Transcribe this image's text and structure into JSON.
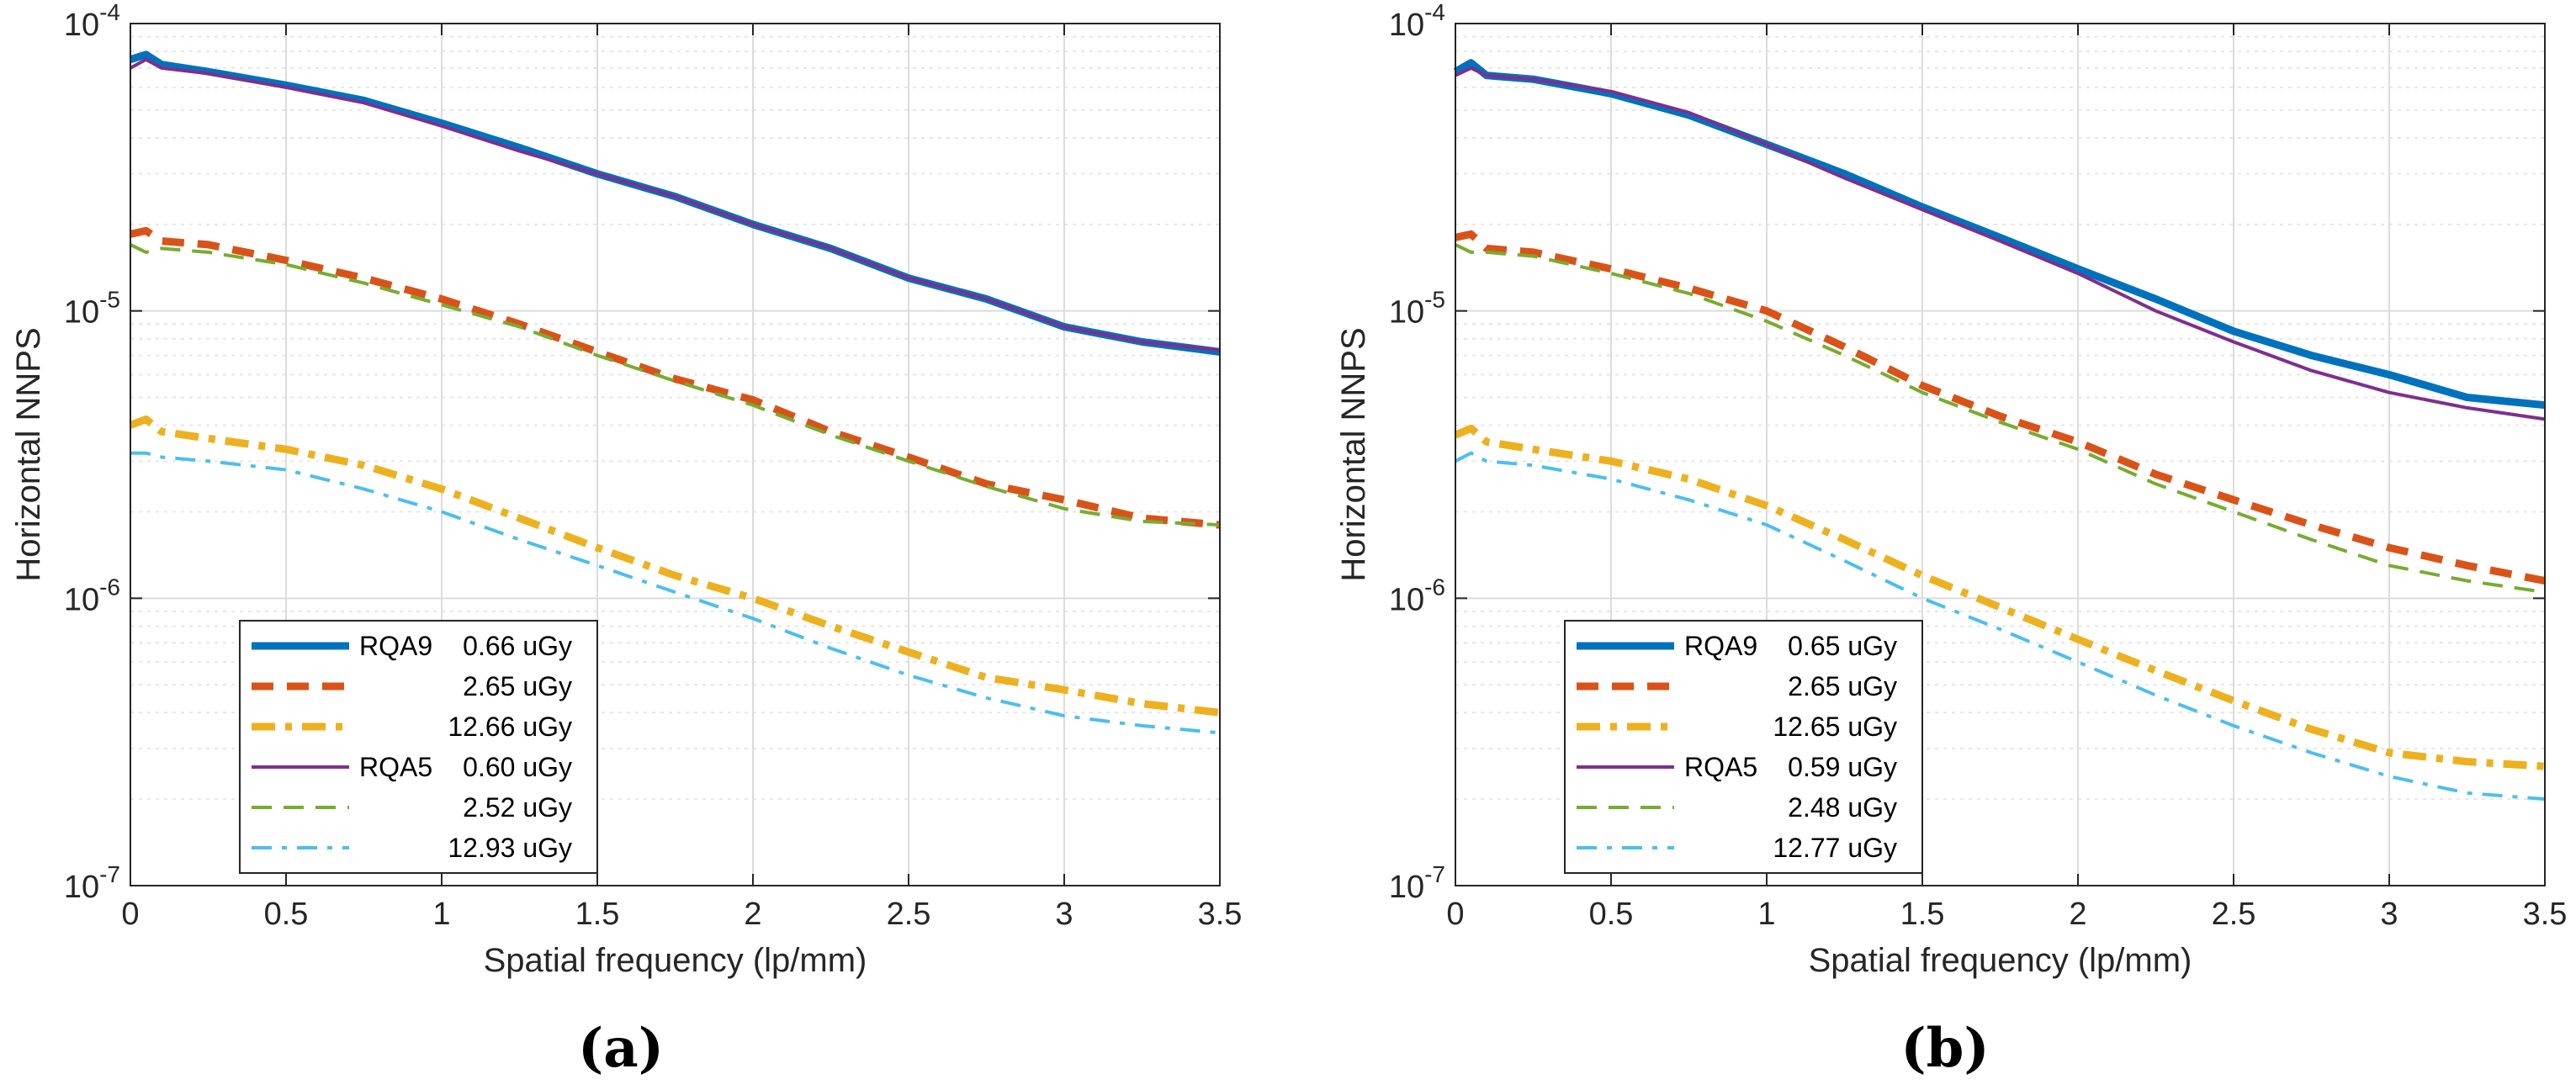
{
  "captions": [
    "(a)",
    "(b)"
  ],
  "colors": {
    "rqa9_low": "#0072BD",
    "rqa9_mid": "#D95319",
    "rqa9_high": "#EDB120",
    "rqa5_low": "#7E2F8E",
    "rqa5_mid": "#77AC30",
    "rqa5_high": "#4DBEEE"
  },
  "chart_data": [
    {
      "type": "line",
      "panel": "(a)",
      "title": "",
      "xlabel": "Spatial frequency (lp/mm)",
      "ylabel": "Horizontal NNPS",
      "xlim": [
        0,
        3.5
      ],
      "ylim": [
        1e-07,
        0.0001
      ],
      "yscale": "log",
      "grid": true,
      "legend_position": "bottom-left",
      "x_ticks": [
        "0",
        "0.5",
        "1",
        "1.5",
        "2",
        "2.5",
        "3",
        "3.5"
      ],
      "y_ticks": [
        {
          "base": "10",
          "exp": "-7",
          "value": 1e-07
        },
        {
          "base": "10",
          "exp": "-6",
          "value": 1e-06
        },
        {
          "base": "10",
          "exp": "-5",
          "value": 1e-05
        },
        {
          "base": "10",
          "exp": "-4",
          "value": 0.0001
        }
      ],
      "x": [
        0.0,
        0.05,
        0.1,
        0.25,
        0.5,
        0.75,
        1.0,
        1.25,
        1.5,
        1.75,
        2.0,
        2.25,
        2.5,
        2.75,
        3.0,
        3.25,
        3.5
      ],
      "series": [
        {
          "name": "RQA9 0.66 uGy",
          "legend_beam": "RQA9",
          "legend_dose": "0.66 uGy",
          "style": "solid-thick",
          "values": [
            7.5e-05,
            7.8e-05,
            7.2e-05,
            6.8e-05,
            6.1e-05,
            5.4e-05,
            4.5e-05,
            3.7e-05,
            3e-05,
            2.5e-05,
            2e-05,
            1.65e-05,
            1.3e-05,
            1.1e-05,
            8.8e-06,
            7.8e-06,
            7.2e-06
          ]
        },
        {
          "name": "2.65 uGy",
          "legend_beam": "",
          "legend_dose": "2.65 uGy",
          "style": "dashed-thick",
          "values": [
            1.85e-05,
            1.9e-05,
            1.75e-05,
            1.7e-05,
            1.5e-05,
            1.3e-05,
            1.1e-05,
            9e-06,
            7.2e-06,
            5.8e-06,
            4.9e-06,
            3.8e-06,
            3.1e-06,
            2.5e-06,
            2.2e-06,
            1.9e-06,
            1.8e-06
          ]
        },
        {
          "name": "12.66 uGy",
          "legend_beam": "",
          "legend_dose": "12.66 uGy",
          "style": "dashdot-thick",
          "values": [
            4e-06,
            4.2e-06,
            3.8e-06,
            3.6e-06,
            3.3e-06,
            2.9e-06,
            2.4e-06,
            1.9e-06,
            1.5e-06,
            1.2e-06,
            1e-06,
            8e-07,
            6.5e-07,
            5.3e-07,
            4.8e-07,
            4.3e-07,
            4e-07
          ]
        },
        {
          "name": "RQA5 0.60 uGy",
          "legend_beam": "RQA5",
          "legend_dose": "0.60 uGy",
          "style": "solid-thin",
          "values": [
            7e-05,
            7.5e-05,
            7e-05,
            6.7e-05,
            6e-05,
            5.3e-05,
            4.4e-05,
            3.6e-05,
            3e-05,
            2.5e-05,
            2e-05,
            1.65e-05,
            1.3e-05,
            1.1e-05,
            8.8e-06,
            7.8e-06,
            7.3e-06
          ]
        },
        {
          "name": "2.52 uGy",
          "legend_beam": "",
          "legend_dose": "2.52 uGy",
          "style": "dashed-thin",
          "values": [
            1.7e-05,
            1.6e-05,
            1.65e-05,
            1.6e-05,
            1.45e-05,
            1.25e-05,
            1.05e-05,
            8.8e-06,
            7e-06,
            5.7e-06,
            4.7e-06,
            3.7e-06,
            3e-06,
            2.45e-06,
            2.05e-06,
            1.85e-06,
            1.8e-06
          ]
        },
        {
          "name": "12.93 uGy",
          "legend_beam": "",
          "legend_dose": "12.93 uGy",
          "style": "dashdot-thin",
          "values": [
            3.2e-06,
            3.2e-06,
            3.1e-06,
            3e-06,
            2.8e-06,
            2.4e-06,
            2e-06,
            1.6e-06,
            1.3e-06,
            1.05e-06,
            8.5e-07,
            6.7e-07,
            5.4e-07,
            4.5e-07,
            3.9e-07,
            3.6e-07,
            3.4e-07
          ]
        }
      ]
    },
    {
      "type": "line",
      "panel": "(b)",
      "title": "",
      "xlabel": "Spatial frequency (lp/mm)",
      "ylabel": "Horizontal NNPS",
      "xlim": [
        0,
        3.5
      ],
      "ylim": [
        1e-07,
        0.0001
      ],
      "yscale": "log",
      "grid": true,
      "legend_position": "bottom-left",
      "x_ticks": [
        "0",
        "0.5",
        "1",
        "1.5",
        "2",
        "2.5",
        "3",
        "3.5"
      ],
      "y_ticks": [
        {
          "base": "10",
          "exp": "-7",
          "value": 1e-07
        },
        {
          "base": "10",
          "exp": "-6",
          "value": 1e-06
        },
        {
          "base": "10",
          "exp": "-5",
          "value": 1e-05
        },
        {
          "base": "10",
          "exp": "-4",
          "value": 0.0001
        }
      ],
      "x": [
        0.0,
        0.05,
        0.1,
        0.25,
        0.5,
        0.75,
        1.0,
        1.25,
        1.5,
        1.75,
        2.0,
        2.25,
        2.5,
        2.75,
        3.0,
        3.25,
        3.5
      ],
      "series": [
        {
          "name": "RQA9 0.65 uGy",
          "legend_beam": "RQA9",
          "legend_dose": "0.65 uGy",
          "style": "solid-thick",
          "values": [
            6.8e-05,
            7.3e-05,
            6.6e-05,
            6.4e-05,
            5.7e-05,
            4.8e-05,
            3.8e-05,
            3e-05,
            2.3e-05,
            1.8e-05,
            1.4e-05,
            1.1e-05,
            8.5e-06,
            7e-06,
            6e-06,
            5e-06,
            4.7e-06
          ]
        },
        {
          "name": "2.65 uGy",
          "legend_beam": "",
          "legend_dose": "2.65 uGy",
          "style": "dashed-thick",
          "values": [
            1.8e-05,
            1.85e-05,
            1.65e-05,
            1.6e-05,
            1.4e-05,
            1.2e-05,
            1e-05,
            7.5e-06,
            5.5e-06,
            4.3e-06,
            3.5e-06,
            2.7e-06,
            2.2e-06,
            1.8e-06,
            1.5e-06,
            1.3e-06,
            1.15e-06
          ]
        },
        {
          "name": "12.65 uGy",
          "legend_beam": "",
          "legend_dose": "12.65 uGy",
          "style": "dashdot-thick",
          "values": [
            3.7e-06,
            3.9e-06,
            3.5e-06,
            3.3e-06,
            3e-06,
            2.6e-06,
            2.1e-06,
            1.6e-06,
            1.2e-06,
            9.3e-07,
            7.2e-07,
            5.6e-07,
            4.4e-07,
            3.5e-07,
            2.9e-07,
            2.7e-07,
            2.6e-07
          ]
        },
        {
          "name": "RQA5 0.59 uGy",
          "legend_beam": "RQA5",
          "legend_dose": "0.59 uGy",
          "style": "solid-thin",
          "values": [
            6.6e-05,
            7e-05,
            6.6e-05,
            6.4e-05,
            5.8e-05,
            4.9e-05,
            3.8e-05,
            2.9e-05,
            2.25e-05,
            1.75e-05,
            1.35e-05,
            1e-05,
            7.8e-06,
            6.2e-06,
            5.2e-06,
            4.6e-06,
            4.2e-06
          ]
        },
        {
          "name": "2.48 uGy",
          "legend_beam": "",
          "legend_dose": "2.48 uGy",
          "style": "dashed-thin",
          "values": [
            1.7e-05,
            1.6e-05,
            1.6e-05,
            1.55e-05,
            1.35e-05,
            1.15e-05,
            9.2e-06,
            7e-06,
            5.2e-06,
            4.1e-06,
            3.3e-06,
            2.5e-06,
            2e-06,
            1.6e-06,
            1.3e-06,
            1.15e-06,
            1.05e-06
          ]
        },
        {
          "name": "12.77 uGy",
          "legend_beam": "",
          "legend_dose": "12.77 uGy",
          "style": "dashdot-thin",
          "values": [
            3e-06,
            3.2e-06,
            3e-06,
            2.9e-06,
            2.6e-06,
            2.2e-06,
            1.8e-06,
            1.35e-06,
            1e-06,
            7.8e-07,
            6e-07,
            4.6e-07,
            3.6e-07,
            2.9e-07,
            2.4e-07,
            2.1e-07,
            2e-07
          ]
        }
      ]
    }
  ]
}
